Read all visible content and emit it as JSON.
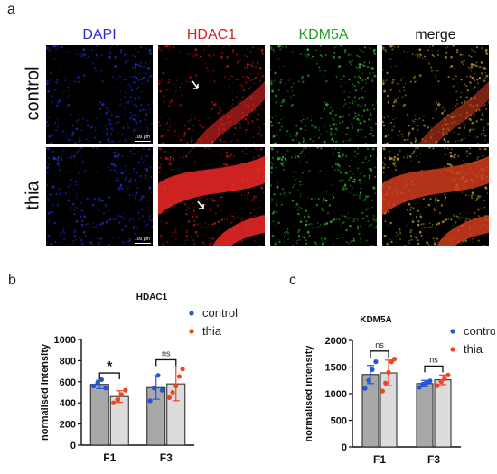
{
  "panel_a": {
    "letter": "a",
    "columns": [
      {
        "label": "DAPI",
        "color": "#2a2ad0"
      },
      {
        "label": "HDAC1",
        "color": "#d42020"
      },
      {
        "label": "KDM5A",
        "color": "#22a022"
      },
      {
        "label": "merge",
        "color": "#111111"
      }
    ],
    "rows": [
      {
        "label": "control"
      },
      {
        "label": "thia"
      }
    ],
    "scale_bar": "100 μm"
  },
  "panel_b": {
    "letter": "b"
  },
  "panel_c": {
    "letter": "c"
  },
  "chart_data": [
    {
      "type": "bar",
      "title": "HDAC1",
      "ylabel": "normalised intensity",
      "categories": [
        "F1",
        "F3"
      ],
      "ylim": [
        0,
        1000
      ],
      "yticks": [
        "0",
        "200",
        "400",
        "600",
        "800",
        "1000"
      ],
      "legend": {
        "placement": "top-right",
        "entries": [
          {
            "name": "control",
            "color": "#2255dd"
          },
          {
            "name": "thia",
            "color": "#ee4422"
          }
        ]
      },
      "series": [
        {
          "name": "control",
          "values": [
            575,
            545
          ],
          "errors": [
            40,
            110
          ],
          "points": [
            [
              560,
              590,
              620,
              540
            ],
            [
              420,
              540,
              660,
              520
            ]
          ]
        },
        {
          "name": "thia",
          "values": [
            460,
            580
          ],
          "errors": [
            55,
            160
          ],
          "points": [
            [
              400,
              430,
              480,
              520
            ],
            [
              450,
              500,
              560,
              650,
              720
            ]
          ]
        }
      ],
      "significance": [
        "*",
        "ns"
      ]
    },
    {
      "type": "bar",
      "title": "KDM5A",
      "ylabel": "normalised intensity",
      "categories": [
        "F1",
        "F3"
      ],
      "ylim": [
        0,
        2000
      ],
      "yticks": [
        "0",
        "500",
        "1000",
        "1500",
        "2000"
      ],
      "legend": {
        "placement": "top-right",
        "entries": [
          {
            "name": "control",
            "color": "#2255dd"
          },
          {
            "name": "thia",
            "color": "#ee4422"
          }
        ]
      },
      "series": [
        {
          "name": "control",
          "values": [
            1360,
            1190
          ],
          "errors": [
            170,
            60
          ],
          "points": [
            [
              1100,
              1250,
              1450,
              1600
            ],
            [
              1120,
              1180,
              1200,
              1240
            ]
          ]
        },
        {
          "name": "thia",
          "values": [
            1390,
            1260
          ],
          "errors": [
            240,
            90
          ],
          "points": [
            [
              1050,
              1200,
              1400,
              1600,
              1650
            ],
            [
              1150,
              1230,
              1280,
              1350
            ]
          ]
        }
      ],
      "significance": [
        "ns",
        "ns"
      ]
    }
  ]
}
